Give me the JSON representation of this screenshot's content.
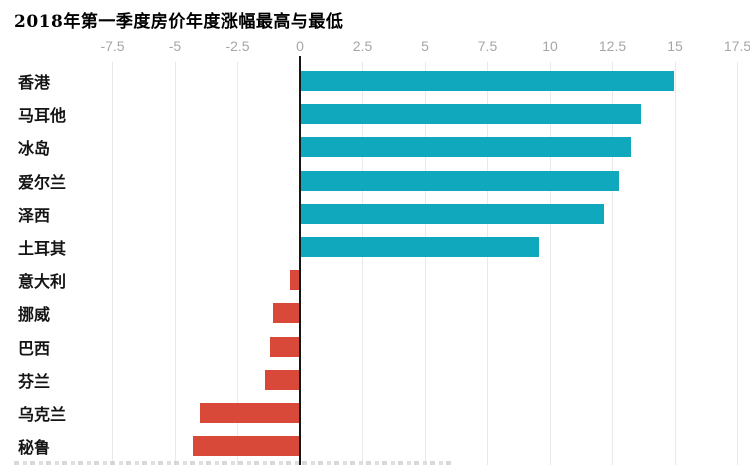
{
  "title": "2018年第一季度房价年度涨幅最高与最低",
  "chart_data": {
    "type": "bar",
    "orientation": "horizontal",
    "title": "2018年第一季度房价年度涨幅最高与最低",
    "categories": [
      "香港",
      "马耳他",
      "冰岛",
      "爱尔兰",
      "泽西",
      "土耳其",
      "意大利",
      "挪威",
      "巴西",
      "芬兰",
      "乌克兰",
      "秘鲁"
    ],
    "values": [
      14.9,
      13.6,
      13.2,
      12.7,
      12.1,
      9.5,
      -0.4,
      -1.1,
      -1.2,
      -1.4,
      -4.0,
      -4.3
    ],
    "xticks": [
      -7.5,
      -5,
      -2.5,
      0,
      2.5,
      5,
      7.5,
      10,
      12.5,
      15,
      17.5
    ],
    "xtick_labels": [
      "-7.5",
      "-5",
      "-2.5",
      "0",
      "2.5",
      "5",
      "7.5",
      "10",
      "12.5",
      "15",
      "17.5"
    ],
    "xlim": [
      -12,
      18
    ],
    "xlabel": "",
    "ylabel": "",
    "grid": true,
    "legend": "none",
    "axis_position": "top",
    "positive_color": "#0FA8BD",
    "negative_color": "#D8493A",
    "zero_axis_color": "#161616",
    "gridline_color": "#e9e9e9",
    "tick_label_color": "#a6a6a6",
    "category_label_color": "#141414",
    "title_color": "#000000"
  }
}
